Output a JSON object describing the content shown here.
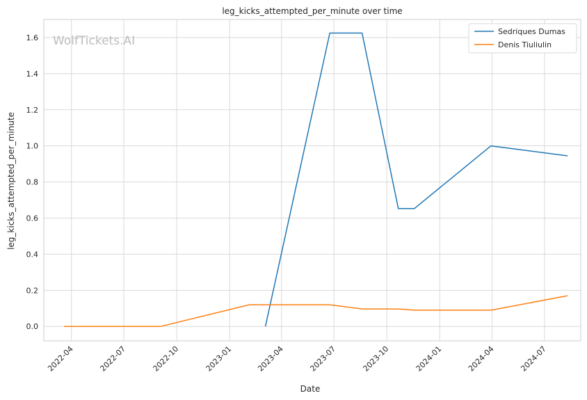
{
  "chart_data": {
    "type": "line",
    "title": "leg_kicks_attempted_per_minute over time",
    "xlabel": "Date",
    "ylabel": "leg_kicks_attempted_per_minute",
    "watermark": "WolfTickets.AI",
    "x_ticks": [
      "2022-04",
      "2022-07",
      "2022-10",
      "2023-01",
      "2023-04",
      "2023-07",
      "2023-10",
      "2024-01",
      "2024-04",
      "2024-07"
    ],
    "y_ticks": [
      "0.0",
      "0.2",
      "0.4",
      "0.6",
      "0.8",
      "1.0",
      "1.2",
      "1.4",
      "1.6"
    ],
    "ylim": [
      -0.08,
      1.7
    ],
    "xlim": [
      "2022-02-12",
      "2024-09-02"
    ],
    "grid": true,
    "legend_position": "top-right",
    "series": [
      {
        "name": "Sedriques Dumas",
        "color": "#1f77b4",
        "x": [
          "2023-03-04",
          "2023-06-24",
          "2023-08-19",
          "2023-10-21",
          "2023-11-18",
          "2024-03-30",
          "2024-08-10"
        ],
        "y": [
          0.0,
          1.625,
          1.625,
          0.653,
          0.653,
          1.0,
          0.945
        ]
      },
      {
        "name": "Denis Tiuliulin",
        "color": "#ff7f0e",
        "x": [
          "2022-03-19",
          "2022-09-03",
          "2023-02-04",
          "2023-06-24",
          "2023-08-19",
          "2023-10-21",
          "2023-11-18",
          "2024-03-30",
          "2024-08-10"
        ],
        "y": [
          0.0,
          0.0,
          0.12,
          0.12,
          0.097,
          0.097,
          0.09,
          0.09,
          0.17
        ]
      }
    ]
  }
}
